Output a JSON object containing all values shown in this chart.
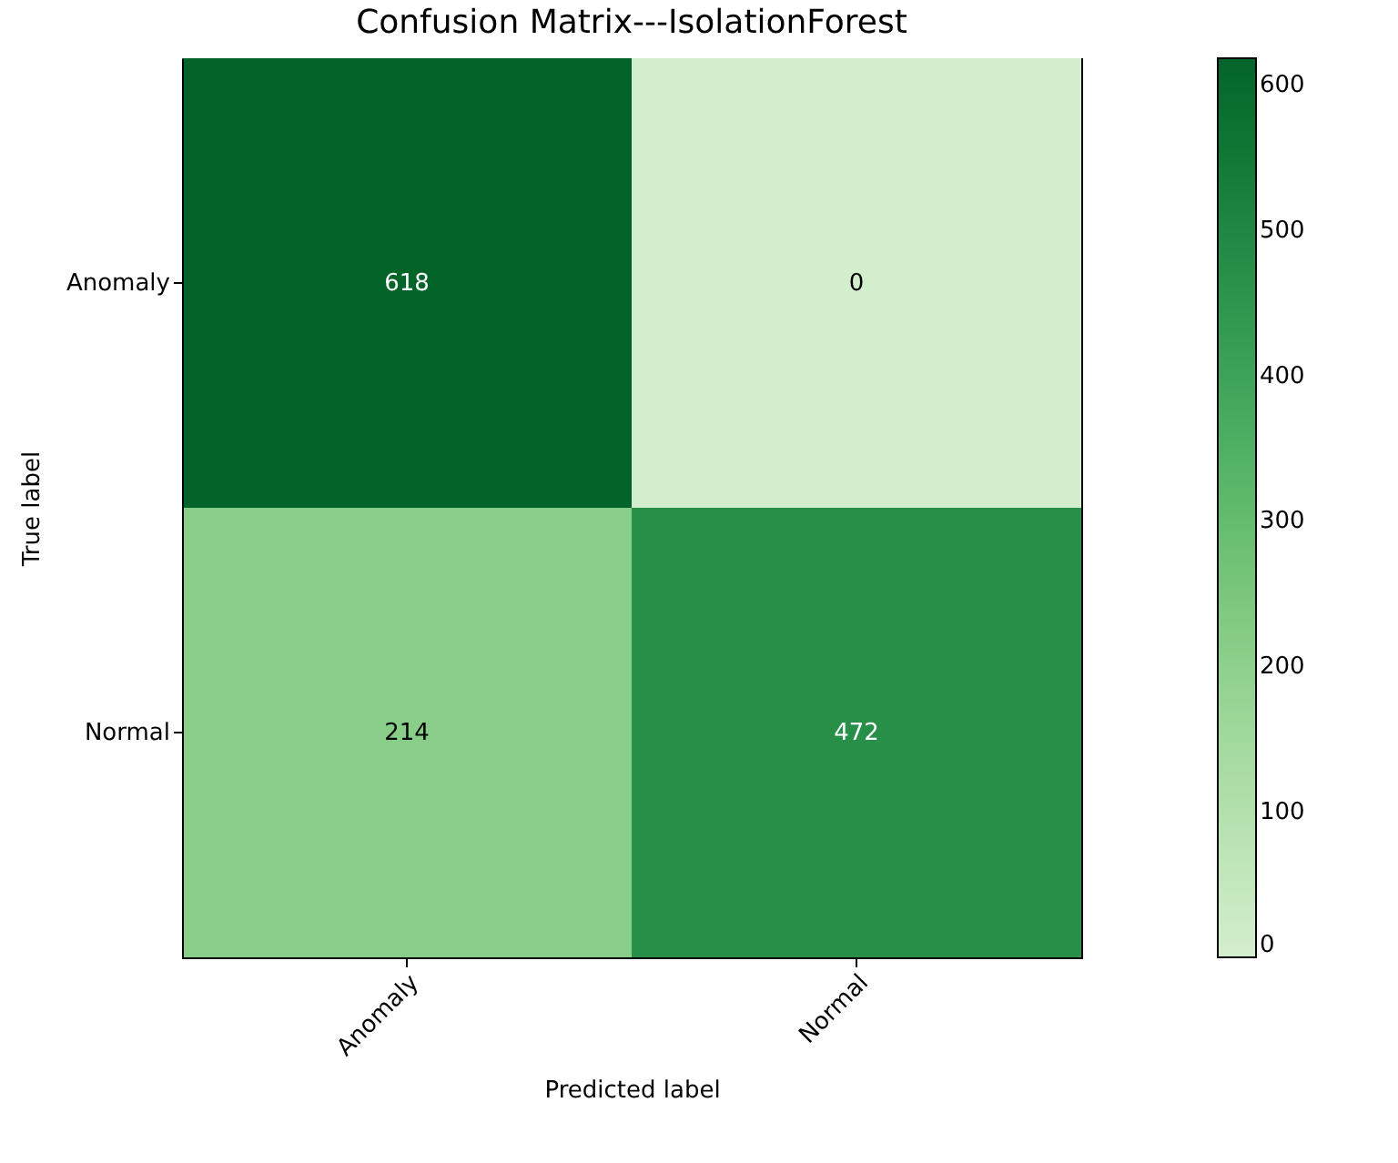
{
  "chart_data": {
    "type": "heatmap",
    "title": "Confusion Matrix---IsolationForest",
    "xlabel": "Predicted label",
    "ylabel": "True label",
    "categories": [
      "Anomaly",
      "Normal"
    ],
    "y_categories": [
      "Anomaly",
      "Normal"
    ],
    "cells": [
      [
        618,
        0
      ],
      [
        214,
        472
      ]
    ],
    "clim": [
      0,
      618
    ],
    "cticks": [
      0,
      100,
      200,
      300,
      400,
      500,
      600
    ],
    "data_labels": true,
    "grid": false
  }
}
